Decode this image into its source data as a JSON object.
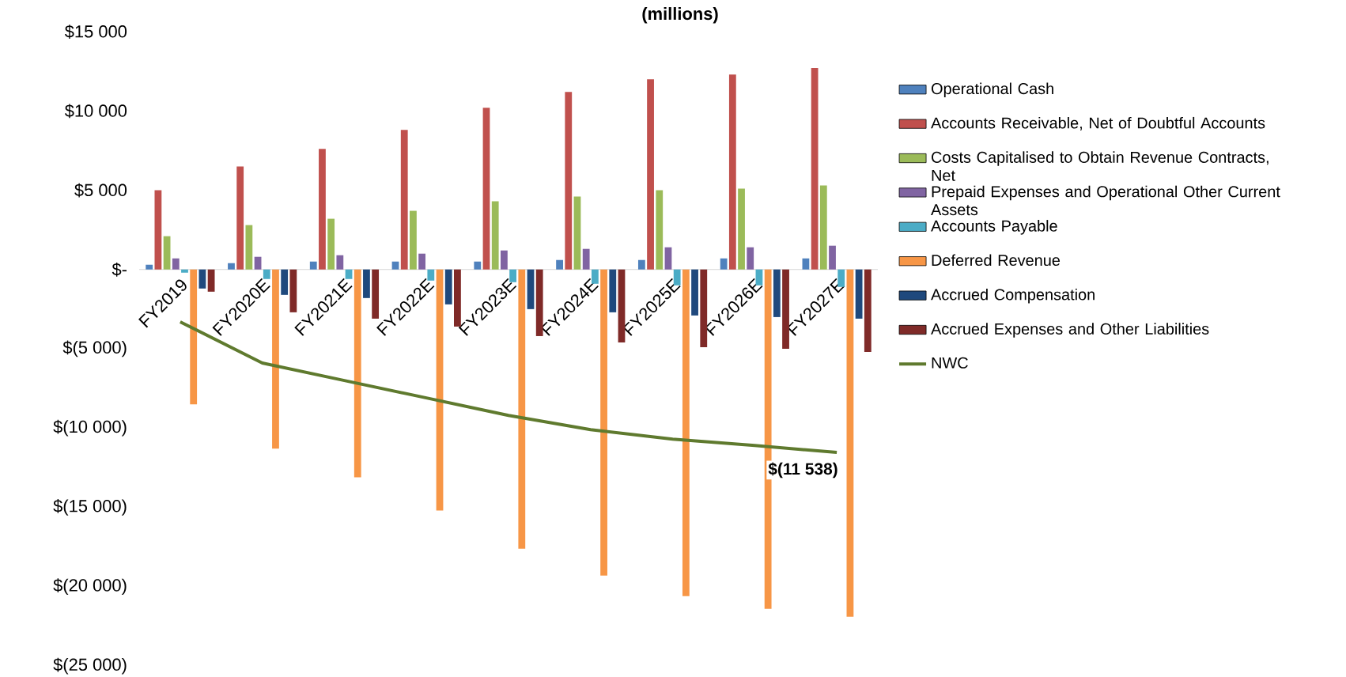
{
  "chart_data": {
    "type": "bar",
    "title": "(millions)",
    "categories": [
      "FY2019",
      "FY2020E",
      "FY2021E",
      "FY2022E",
      "FY2023E",
      "FY2024E",
      "FY2025E",
      "FY2026E",
      "FY2027E"
    ],
    "series": [
      {
        "name": "Operational Cash",
        "color": "#4f81bd",
        "values": [
          300,
          400,
          500,
          500,
          500,
          600,
          600,
          700,
          700
        ]
      },
      {
        "name": "Accounts Receivable, Net of Doubtful Accounts",
        "color": "#c0504d",
        "values": [
          5000,
          6500,
          7600,
          8800,
          10200,
          11200,
          12000,
          12300,
          12700
        ]
      },
      {
        "name": "Costs Capitalised to Obtain Revenue Contracts, Net",
        "color": "#9bbb59",
        "values": [
          2100,
          2800,
          3200,
          3700,
          4300,
          4600,
          5000,
          5100,
          5300
        ]
      },
      {
        "name": "Prepaid Expenses and Operational Other Current Assets",
        "color": "#8064a2",
        "values": [
          700,
          800,
          900,
          1000,
          1200,
          1300,
          1400,
          1400,
          1500
        ]
      },
      {
        "name": "Accounts Payable",
        "color": "#4bacc6",
        "values": [
          -200,
          -600,
          -600,
          -700,
          -800,
          -900,
          -1000,
          -1000,
          -1100
        ]
      },
      {
        "name": "Deferred Revenue",
        "color": "#f79646",
        "values": [
          -8500,
          -11300,
          -13100,
          -15200,
          -17600,
          -19300,
          -20600,
          -21400,
          -21900
        ]
      },
      {
        "name": "Accrued Compensation",
        "color": "#1f497d",
        "values": [
          -1200,
          -1600,
          -1800,
          -2200,
          -2500,
          -2700,
          -2900,
          -3000,
          -3100
        ]
      },
      {
        "name": "Accrued Expenses and Other Liabilities",
        "color": "#7f2a28",
        "values": [
          -1400,
          -2700,
          -3100,
          -3600,
          -4200,
          -4600,
          -4900,
          -5000,
          -5200
        ]
      },
      {
        "name": "NWC",
        "type": "line",
        "color": "#5f7a2e",
        "values": [
          -3300,
          -5900,
          -7000,
          -8100,
          -9200,
          -10100,
          -10700,
          -11100,
          -11538
        ],
        "value_labels": [
          null,
          null,
          null,
          null,
          null,
          null,
          null,
          null,
          "$(11 538)"
        ]
      }
    ],
    "ylim": [
      -25000,
      15000
    ],
    "yticks": [
      {
        "value": 15000,
        "label": "$15 000"
      },
      {
        "value": 10000,
        "label": "$10 000"
      },
      {
        "value": 5000,
        "label": "$5 000"
      },
      {
        "value": 0,
        "label": "$-"
      },
      {
        "value": -5000,
        "label": "$(5 000)"
      },
      {
        "value": -10000,
        "label": "$(10 000)"
      },
      {
        "value": -15000,
        "label": "$(15 000)"
      },
      {
        "value": -20000,
        "label": "$(20 000)"
      },
      {
        "value": -25000,
        "label": "$(25 000)"
      }
    ],
    "legend": "right"
  }
}
